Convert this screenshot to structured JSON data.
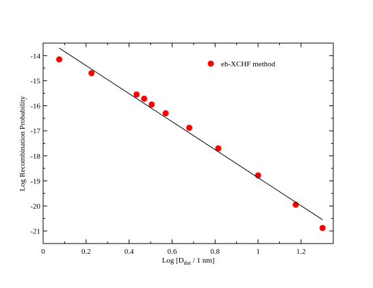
{
  "chart_data": {
    "type": "scatter",
    "xlabel": {
      "prefix": "Log [D",
      "subscript": "dot",
      "suffix": " / 1 nm]"
    },
    "ylabel": "Log Recombination Probability",
    "xlim": [
      0,
      1.35
    ],
    "ylim": [
      -21.5,
      -13.5
    ],
    "x_ticks": [
      0,
      0.2,
      0.4,
      0.6,
      0.8,
      1,
      1.2
    ],
    "x_tick_labels": [
      "0",
      "0.2",
      "0.4",
      "0.6",
      "0.8",
      "1",
      "1.2"
    ],
    "y_ticks": [
      -14,
      -15,
      -16,
      -17,
      -18,
      -19,
      -20,
      -21
    ],
    "y_tick_labels": [
      "-14",
      "-15",
      "-16",
      "-17",
      "-18",
      "-19",
      "-20",
      "-21"
    ],
    "grid": false,
    "legend_placement": "top-right",
    "series": [
      {
        "name": "eh-XCHF method",
        "kind": "scatter",
        "color": "#ff0000",
        "x": [
          0.075,
          0.225,
          0.435,
          0.47,
          0.505,
          0.57,
          0.68,
          0.815,
          1.0,
          1.175,
          1.3
        ],
        "y": [
          -14.15,
          -14.7,
          -15.55,
          -15.72,
          -15.95,
          -16.3,
          -16.88,
          -17.7,
          -18.78,
          -19.95,
          -20.88
        ]
      },
      {
        "kind": "line",
        "color": "#000000",
        "x": [
          0.075,
          1.3
        ],
        "y": [
          -13.7,
          -20.55
        ]
      }
    ]
  }
}
